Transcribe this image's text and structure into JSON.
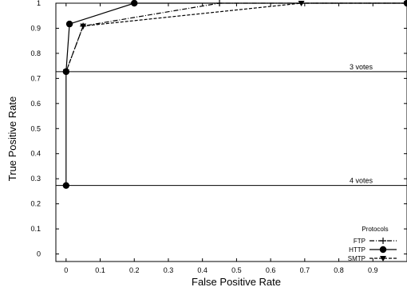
{
  "chart_data": {
    "type": "line",
    "xlabel": "False Positive Rate",
    "ylabel": "True Positive Rate",
    "xlim": [
      -0.03,
      1.0
    ],
    "ylim": [
      -0.03,
      1.0
    ],
    "x_ticks": [
      "0",
      "0.1",
      "0.2",
      "0.3",
      "0.4",
      "0.5",
      "0.6",
      "0.7",
      "0.8",
      "0.9"
    ],
    "y_ticks": [
      "0",
      "0.1",
      "0.2",
      "0.3",
      "0.4",
      "0.5",
      "0.6",
      "0.7",
      "0.8",
      "0.9",
      "1"
    ],
    "grid": false,
    "legend": {
      "title": "Protocols",
      "position": "bottom-right"
    },
    "series": [
      {
        "name": "FTP",
        "marker": "plus",
        "dash": "dashdot",
        "points": [
          [
            0,
            0.727
          ],
          [
            0.05,
            0.909
          ],
          [
            0.45,
            1.0
          ],
          [
            1.0,
            1.0
          ]
        ]
      },
      {
        "name": "HTTP",
        "marker": "circle",
        "dash": "solid",
        "points": [
          [
            0,
            0.273
          ],
          [
            0,
            0.727
          ],
          [
            0.01,
            0.917
          ],
          [
            0.2,
            1.0
          ],
          [
            1.0,
            1.0
          ]
        ]
      },
      {
        "name": "SMTP",
        "marker": "triangle-down",
        "dash": "dashed",
        "points": [
          [
            0,
            0.727
          ],
          [
            0.05,
            0.909
          ],
          [
            0.69,
            1.0
          ],
          [
            1.0,
            1.0
          ]
        ]
      }
    ],
    "reference_lines": [
      {
        "y": 0.727,
        "label": "3 votes"
      },
      {
        "y": 0.273,
        "label": "4 votes"
      }
    ]
  }
}
